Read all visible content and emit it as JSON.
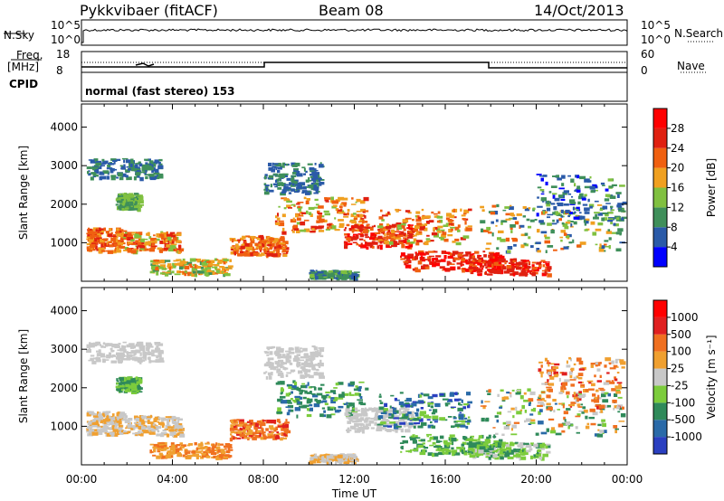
{
  "header": {
    "station": "Pykkvibaer (fitACF)",
    "beam": "Beam 08",
    "date": "14/Oct/2013"
  },
  "strip_noise": {
    "left_label": "N.Sky",
    "right_label": "N.Search",
    "left_ticks": [
      "10^5",
      "10^0"
    ],
    "right_ticks": [
      "10^5",
      "10^0"
    ]
  },
  "strip_freq": {
    "left_label_1": "Freq.",
    "left_label_2": "[MHz]",
    "right_label": "Nave",
    "left_ticks": [
      "18",
      "8"
    ],
    "right_ticks": [
      "60",
      "0"
    ]
  },
  "cpid": {
    "label": "CPID",
    "text": "normal (fast stereo) 153"
  },
  "power_panel": {
    "ylabel": "Slant Range [km]",
    "yticks": [
      "4000",
      "3000",
      "2000",
      "1000"
    ],
    "colorbar_label": "Power [dB]",
    "colorbar_ticks": [
      "28",
      "24",
      "20",
      "16",
      "12",
      "8",
      "4"
    ],
    "colors": [
      "#0000ff",
      "#2a5aa8",
      "#3f8f5a",
      "#80c040",
      "#f0a020",
      "#f06010",
      "#e02010",
      "#ff0000"
    ]
  },
  "velocity_panel": {
    "ylabel": "Slant Range [km]",
    "yticks": [
      "4000",
      "3000",
      "2000",
      "1000"
    ],
    "colorbar_label": "Velocity [m s⁻¹]",
    "colorbar_ticks": [
      "1000",
      "500",
      "100",
      "25",
      "-25",
      "-100",
      "-500",
      "-1000"
    ],
    "colors": [
      "#2a3fc0",
      "#2a6aa8",
      "#2f8a5a",
      "#7ccc3c",
      "#c8c8c8",
      "#f0a030",
      "#f07020",
      "#e02020",
      "#ff0000"
    ]
  },
  "time_axis": {
    "label": "Time UT",
    "ticks": [
      "00:00",
      "04:00",
      "08:00",
      "12:00",
      "16:00",
      "20:00",
      "00:00"
    ]
  }
}
